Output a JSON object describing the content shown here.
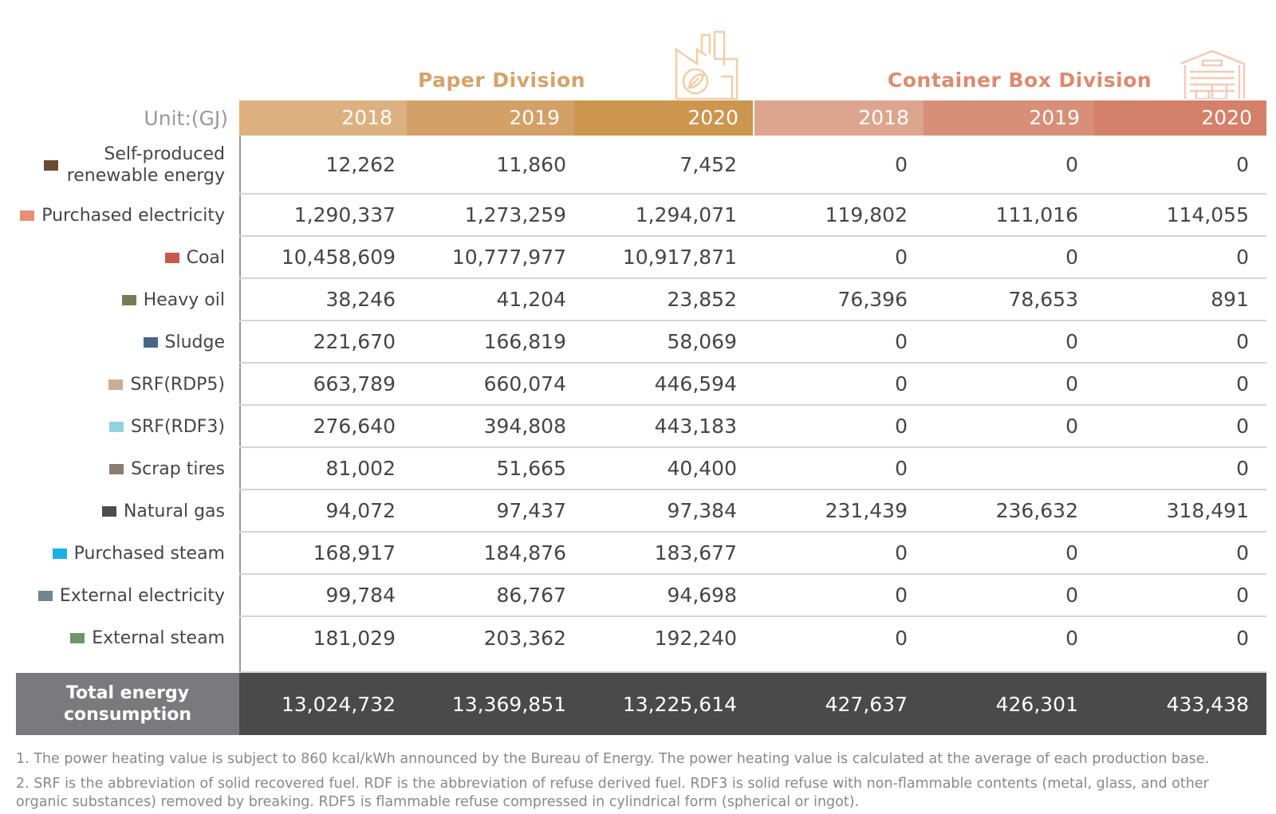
{
  "divisions": {
    "paper": "Paper Division",
    "container": "Container Box Division"
  },
  "unit_label": "Unit:(GJ)",
  "years": [
    "2018",
    "2019",
    "2020",
    "2018",
    "2019",
    "2020"
  ],
  "header_colors": [
    "#dcb17f",
    "#d3a067",
    "#cc964f",
    "#dda48e",
    "#d78f77",
    "#d4806a"
  ],
  "rows": [
    {
      "label": "Self-produced renewable energy",
      "swatch": "#6b4a33",
      "values": [
        "12,262",
        "11,860",
        "7,452",
        "0",
        "0",
        "0"
      ]
    },
    {
      "label": "Purchased electricity",
      "swatch": "#e88f73",
      "values": [
        "1,290,337",
        "1,273,259",
        "1,294,071",
        "119,802",
        "111,016",
        "114,055"
      ]
    },
    {
      "label": "Coal",
      "swatch": "#c9574e",
      "values": [
        "10,458,609",
        "10,777,977",
        "10,917,871",
        "0",
        "0",
        "0"
      ]
    },
    {
      "label": "Heavy oil",
      "swatch": "#7a7a52",
      "values": [
        "38,246",
        "41,204",
        "23,852",
        "76,396",
        "78,653",
        "891"
      ]
    },
    {
      "label": "Sludge",
      "swatch": "#4a6589",
      "values": [
        "221,670",
        "166,819",
        "58,069",
        "0",
        "0",
        "0"
      ]
    },
    {
      "label": "SRF(RDP5)",
      "swatch": "#c9ad96",
      "values": [
        "663,789",
        "660,074",
        "446,594",
        "0",
        "0",
        "0"
      ]
    },
    {
      "label": "SRF(RDF3)",
      "swatch": "#8fd3dc",
      "values": [
        "276,640",
        "394,808",
        "443,183",
        "0",
        "0",
        "0"
      ]
    },
    {
      "label": "Scrap tires",
      "swatch": "#8a7d72",
      "values": [
        "81,002",
        "51,665",
        "40,400",
        "0",
        "",
        "0"
      ]
    },
    {
      "label": "Natural gas",
      "swatch": "#4d4d4d",
      "values": [
        "94,072",
        "97,437",
        "97,384",
        "231,439",
        "236,632",
        "318,491"
      ]
    },
    {
      "label": "Purchased steam",
      "swatch": "#1ab2e6",
      "values": [
        "168,917",
        "184,876",
        "183,677",
        "0",
        "0",
        "0"
      ]
    },
    {
      "label": "External electricity",
      "swatch": "#6f8591",
      "values": [
        "99,784",
        "86,767",
        "94,698",
        "0",
        "0",
        "0"
      ]
    },
    {
      "label": "External steam",
      "swatch": "#6f9669",
      "values": [
        "181,029",
        "203,362",
        "192,240",
        "0",
        "0",
        "0"
      ]
    }
  ],
  "total": {
    "label": "Total energy consumption",
    "values": [
      "13,024,732",
      "13,369,851",
      "13,225,614",
      "427,637",
      "426,301",
      "433,438"
    ]
  },
  "notes": [
    "1. The power heating value is subject to 860 kcal/kWh announced by the Bureau of Energy. The power heating value is calculated at the average of each production base.",
    "2. SRF is the abbreviation of solid recovered fuel. RDF is the abbreviation of refuse derived fuel. RDF3 is solid refuse with non-flammable contents (metal, glass, and other organic substances) removed by breaking. RDF5 is flammable refuse compressed in cylindrical form (spherical or ingot)."
  ],
  "icons": [
    "factory-leaf-icon",
    "warehouse-icon"
  ]
}
